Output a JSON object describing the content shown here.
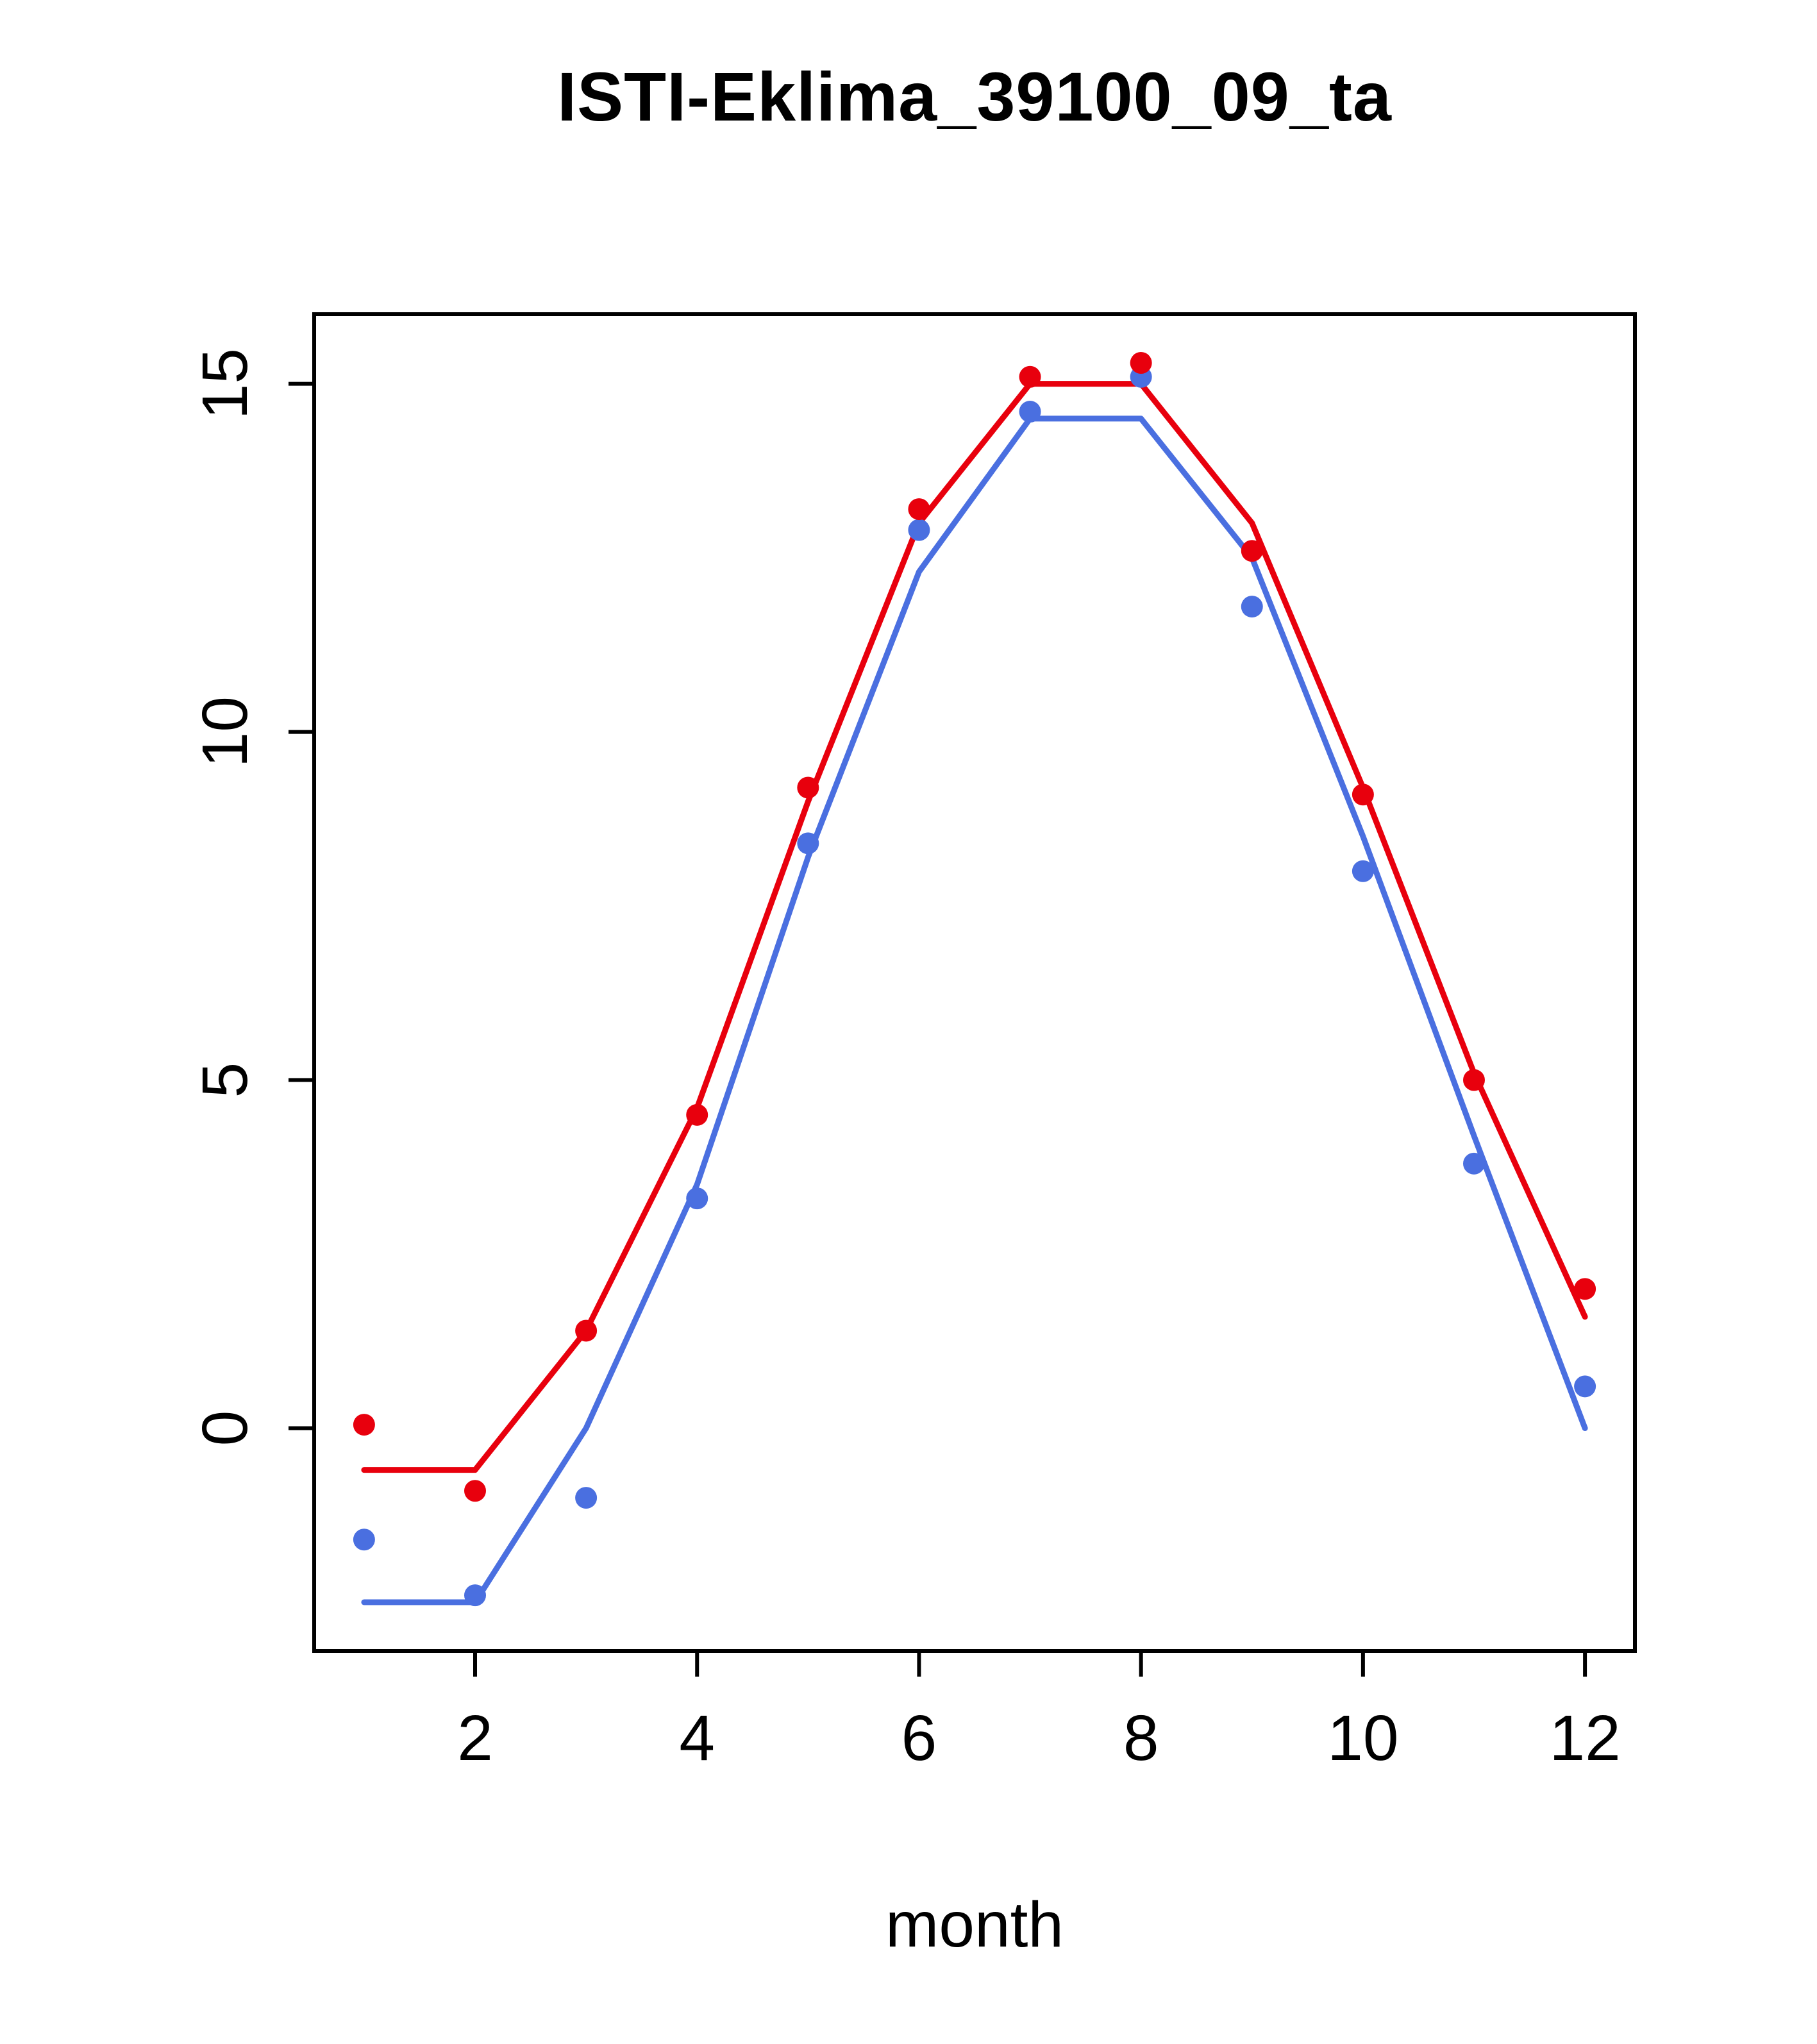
{
  "chart_data": {
    "type": "line",
    "title": "ISTI-Eklima_39100_09_ta",
    "xlabel": "month",
    "ylabel": "",
    "x": [
      1,
      2,
      3,
      4,
      5,
      6,
      7,
      8,
      9,
      10,
      11,
      12
    ],
    "xlim": [
      0.55,
      12.45
    ],
    "ylim": [
      -3.2,
      16.0
    ],
    "xticks": [
      2,
      4,
      6,
      8,
      10,
      12
    ],
    "yticks": [
      0,
      5,
      10,
      15
    ],
    "grid": false,
    "legend": "none",
    "series": [
      {
        "name": "blue-line",
        "draw": "line",
        "color": "#4A6FE0",
        "values": [
          -2.5,
          -2.5,
          0.0,
          3.5,
          8.2,
          12.3,
          14.5,
          14.5,
          12.5,
          8.5,
          4.2,
          0.0
        ]
      },
      {
        "name": "red-line",
        "draw": "line",
        "color": "#E8000D",
        "values": [
          -0.6,
          -0.6,
          1.4,
          4.6,
          9.0,
          13.0,
          15.0,
          15.0,
          13.0,
          9.2,
          5.1,
          1.6
        ]
      },
      {
        "name": "blue-points",
        "draw": "points",
        "color": "#4A6FE0",
        "values": [
          -1.6,
          -2.4,
          -1.0,
          3.3,
          8.4,
          12.9,
          14.6,
          15.1,
          11.8,
          8.0,
          3.8,
          0.6
        ]
      },
      {
        "name": "red-points",
        "draw": "points",
        "color": "#E8000D",
        "values": [
          0.05,
          -0.9,
          1.4,
          4.5,
          9.2,
          13.2,
          15.1,
          15.3,
          12.6,
          9.1,
          5.0,
          2.0
        ]
      }
    ]
  }
}
